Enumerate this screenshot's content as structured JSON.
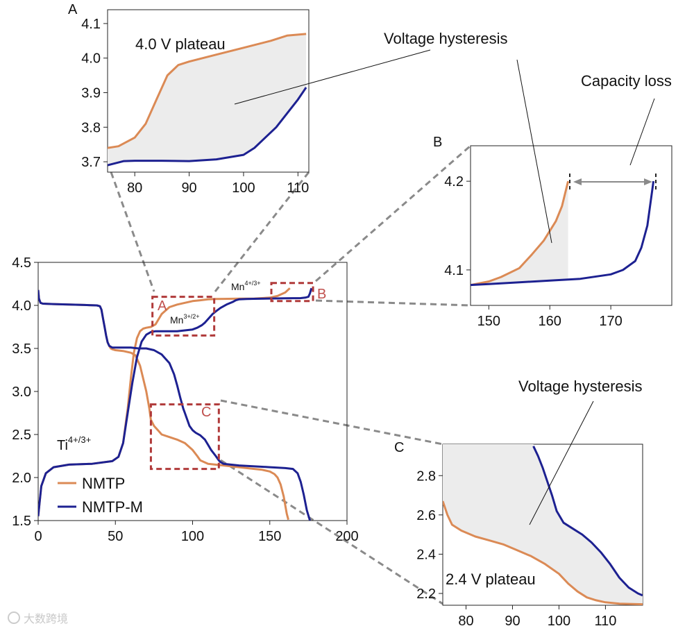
{
  "colors": {
    "nmtp": "#db8a55",
    "nmtp_m": "#1d2191",
    "fill": "#ececec",
    "highlight_box": "#b03a3a",
    "highlight_label": "#c0504d",
    "leader": "#8a8a8a",
    "arrow": "#8a8a8a"
  },
  "watermark": "大数跨境",
  "chart_data": [
    {
      "id": "main",
      "type": "line",
      "xlim": [
        0,
        200
      ],
      "ylim": [
        1.5,
        4.5
      ],
      "xticks": [
        0,
        50,
        100,
        150,
        200
      ],
      "yticks": [
        1.5,
        2.0,
        2.5,
        3.0,
        3.5,
        4.0,
        4.5
      ],
      "xtick_labels": [
        "0",
        "50",
        "100",
        "150",
        "200"
      ],
      "ytick_labels": [
        "1.5",
        "2.0",
        "2.5",
        "3.0",
        "3.5",
        "4.0",
        "4.5"
      ],
      "legend": {
        "position": "bottom-left",
        "entries": [
          "NMTP",
          "NMTP-M"
        ]
      },
      "annotations": {
        "ti": "Ti",
        "ti_sup": "4+/3+",
        "mn32": "Mn",
        "mn32_sup": "3+/2+",
        "mn43": "Mn",
        "mn43_sup": "4+/3+"
      },
      "zoom_boxes": [
        {
          "label": "A",
          "x": [
            74,
            114
          ],
          "y": [
            3.65,
            4.1
          ]
        },
        {
          "label": "B",
          "x": [
            151,
            178
          ],
          "y": [
            4.05,
            4.26
          ]
        },
        {
          "label": "C",
          "x": [
            73,
            117
          ],
          "y": [
            2.1,
            2.85
          ]
        }
      ],
      "series": [
        {
          "name": "NMTP",
          "direction": "charge",
          "x": [
            0,
            2,
            5,
            10,
            20,
            35,
            48,
            52,
            55,
            58,
            60,
            62,
            64,
            66,
            68,
            70,
            73,
            76,
            80,
            85,
            90,
            95,
            100,
            105,
            110,
            115,
            120,
            130,
            140,
            150,
            155,
            160,
            163
          ],
          "y": [
            1.55,
            1.9,
            2.05,
            2.12,
            2.15,
            2.16,
            2.19,
            2.24,
            2.4,
            2.8,
            3.15,
            3.45,
            3.62,
            3.7,
            3.73,
            3.74,
            3.75,
            3.78,
            3.9,
            3.98,
            4.01,
            4.03,
            4.05,
            4.06,
            4.07,
            4.075,
            4.076,
            4.078,
            4.08,
            4.09,
            4.11,
            4.15,
            4.2
          ]
        },
        {
          "name": "NMTP",
          "direction": "discharge",
          "x": [
            0,
            0.5,
            1.5,
            3,
            10,
            20,
            30,
            38,
            40,
            41,
            42,
            43,
            44,
            45,
            46,
            47,
            48,
            50,
            55,
            60,
            63,
            66,
            68,
            70,
            72,
            73,
            75,
            78,
            80,
            85,
            90,
            95,
            100,
            103,
            105,
            110,
            120,
            130,
            140,
            145,
            150,
            153,
            155,
            157,
            159,
            160,
            161,
            162
          ],
          "y": [
            4.18,
            4.08,
            4.03,
            4.02,
            4.015,
            4.01,
            4.005,
            4.0,
            3.99,
            3.95,
            3.85,
            3.75,
            3.65,
            3.57,
            3.53,
            3.5,
            3.49,
            3.48,
            3.47,
            3.45,
            3.42,
            3.3,
            3.15,
            3.0,
            2.8,
            2.67,
            2.6,
            2.54,
            2.5,
            2.47,
            2.44,
            2.4,
            2.32,
            2.25,
            2.2,
            2.16,
            2.14,
            2.12,
            2.1,
            2.09,
            2.07,
            2.04,
            2.0,
            1.92,
            1.78,
            1.68,
            1.58,
            1.51
          ]
        },
        {
          "name": "NMTP-M",
          "direction": "charge",
          "x": [
            0,
            2,
            5,
            10,
            20,
            35,
            48,
            52,
            55,
            58,
            61,
            64,
            67,
            70,
            73,
            76,
            80,
            85,
            90,
            95,
            100,
            103,
            106,
            108,
            110,
            113,
            115,
            118,
            122,
            126,
            128,
            130,
            135,
            140,
            150,
            160,
            170,
            173,
            175,
            176,
            177
          ],
          "y": [
            1.55,
            1.9,
            2.05,
            2.12,
            2.15,
            2.16,
            2.19,
            2.24,
            2.4,
            2.75,
            3.1,
            3.4,
            3.58,
            3.66,
            3.69,
            3.7,
            3.7,
            3.7,
            3.7,
            3.71,
            3.72,
            3.74,
            3.77,
            3.8,
            3.84,
            3.9,
            3.93,
            3.97,
            4.01,
            4.04,
            4.06,
            4.07,
            4.075,
            4.077,
            4.08,
            4.082,
            4.085,
            4.09,
            4.1,
            4.14,
            4.2
          ]
        },
        {
          "name": "NMTP-M",
          "direction": "discharge",
          "x": [
            0,
            0.5,
            1.5,
            3,
            10,
            20,
            30,
            38,
            40,
            41,
            42,
            43,
            44,
            45,
            46,
            48,
            50,
            55,
            60,
            65,
            70,
            75,
            80,
            85,
            88,
            90,
            92,
            94,
            95,
            96,
            97,
            98,
            100,
            102,
            105,
            108,
            110,
            112,
            115,
            117,
            118,
            120,
            130,
            140,
            150,
            160,
            165,
            168,
            170,
            172,
            174,
            176
          ],
          "y": [
            4.18,
            4.08,
            4.03,
            4.02,
            4.015,
            4.01,
            4.005,
            4.0,
            3.99,
            3.95,
            3.85,
            3.75,
            3.65,
            3.57,
            3.53,
            3.51,
            3.51,
            3.51,
            3.51,
            3.5,
            3.5,
            3.48,
            3.43,
            3.33,
            3.2,
            3.07,
            2.93,
            2.8,
            2.75,
            2.7,
            2.65,
            2.6,
            2.55,
            2.52,
            2.49,
            2.44,
            2.38,
            2.32,
            2.25,
            2.2,
            2.18,
            2.16,
            2.14,
            2.13,
            2.12,
            2.11,
            2.1,
            2.05,
            1.95,
            1.8,
            1.62,
            1.5
          ]
        }
      ]
    },
    {
      "id": "A",
      "panel_label": "A",
      "type": "line",
      "xlim": [
        75,
        112
      ],
      "ylim": [
        3.67,
        4.14
      ],
      "xticks": [
        80,
        90,
        100,
        110
      ],
      "yticks": [
        3.7,
        3.8,
        3.9,
        4.0,
        4.1
      ],
      "xtick_labels": [
        "80",
        "90",
        "100",
        "110"
      ],
      "ytick_labels": [
        "3.7",
        "3.8",
        "3.9",
        "4.0",
        "4.1"
      ],
      "annotation": "4.0 V plateau",
      "series": [
        {
          "name": "NMTP",
          "x": [
            75,
            77,
            80,
            82,
            84,
            86,
            88,
            90,
            95,
            100,
            105,
            108,
            111.5
          ],
          "y": [
            3.74,
            3.745,
            3.77,
            3.81,
            3.88,
            3.95,
            3.98,
            3.99,
            4.01,
            4.03,
            4.05,
            4.065,
            4.07
          ]
        },
        {
          "name": "NMTP-M",
          "x": [
            75,
            78,
            80,
            85,
            90,
            95,
            100,
            102,
            104,
            106,
            108,
            110,
            111.5
          ],
          "y": [
            3.69,
            3.702,
            3.703,
            3.703,
            3.702,
            3.707,
            3.72,
            3.74,
            3.77,
            3.8,
            3.84,
            3.88,
            3.915
          ]
        }
      ]
    },
    {
      "id": "B",
      "panel_label": "B",
      "type": "line",
      "xlim": [
        147,
        180
      ],
      "ylim": [
        4.06,
        4.24
      ],
      "xticks": [
        150,
        160,
        170
      ],
      "yticks": [
        4.1,
        4.2
      ],
      "xtick_labels": [
        "150",
        "160",
        "170"
      ],
      "ytick_labels": [
        "4.1",
        "4.2"
      ],
      "series": [
        {
          "name": "NMTP",
          "x": [
            147,
            150,
            152,
            155,
            157,
            159,
            161,
            162,
            163
          ],
          "y": [
            4.083,
            4.087,
            4.092,
            4.102,
            4.117,
            4.133,
            4.155,
            4.172,
            4.2
          ]
        },
        {
          "name": "NMTP-M",
          "x": [
            147,
            150,
            155,
            160,
            165,
            170,
            172,
            174,
            175,
            176,
            177
          ],
          "y": [
            4.083,
            4.084,
            4.086,
            4.088,
            4.09,
            4.095,
            4.1,
            4.11,
            4.125,
            4.15,
            4.2
          ]
        }
      ]
    },
    {
      "id": "C",
      "panel_label": "C",
      "type": "line",
      "xlim": [
        75,
        118
      ],
      "ylim": [
        2.14,
        2.96
      ],
      "xticks": [
        80,
        90,
        100,
        110
      ],
      "yticks": [
        2.2,
        2.4,
        2.6,
        2.8
      ],
      "xtick_labels": [
        "80",
        "90",
        "100",
        "110"
      ],
      "ytick_labels": [
        "2.2",
        "2.4",
        "2.6",
        "2.8"
      ],
      "annotation": "2.4 V plateau",
      "series": [
        {
          "name": "NMTP",
          "x": [
            75,
            76,
            77,
            79,
            82,
            85,
            88,
            91,
            94,
            97,
            100,
            102,
            104,
            106,
            108,
            110,
            113,
            118
          ],
          "y": [
            2.67,
            2.6,
            2.55,
            2.52,
            2.49,
            2.47,
            2.45,
            2.42,
            2.39,
            2.35,
            2.3,
            2.25,
            2.21,
            2.18,
            2.165,
            2.155,
            2.148,
            2.145
          ]
        },
        {
          "name": "NMTP-M",
          "x": [
            94.5,
            95.5,
            96.5,
            97.5,
            98.5,
            99.5,
            101,
            103,
            105,
            107,
            109,
            111,
            113,
            115,
            117,
            118
          ],
          "y": [
            2.95,
            2.9,
            2.84,
            2.77,
            2.7,
            2.62,
            2.56,
            2.53,
            2.5,
            2.46,
            2.41,
            2.35,
            2.28,
            2.23,
            2.2,
            2.19
          ]
        }
      ]
    }
  ],
  "labels": {
    "hysteresis_a": "Voltage hysteresis",
    "capacity_loss": "Capacity loss",
    "hysteresis_c": "Voltage hysteresis"
  }
}
